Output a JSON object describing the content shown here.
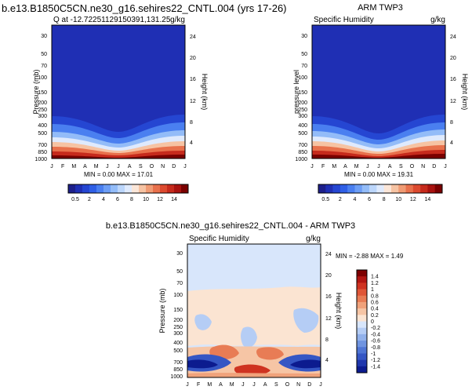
{
  "figure_title": "b.e13.B1850C5CN.ne30_g16.sehires22_CNTL.004 (yrs 17-26)",
  "colors": {
    "model_obs_scale": [
      "#1d1f8a",
      "#1f2fb4",
      "#2546d2",
      "#2f5fe6",
      "#4a7ff0",
      "#6d9ef5",
      "#93bcf8",
      "#bcd6fb",
      "#dfeafd",
      "#fbe6d8",
      "#f6c3a3",
      "#f09b74",
      "#e8714c",
      "#dc4a2f",
      "#c62a1c",
      "#a8120f",
      "#7a0000"
    ],
    "diff_scale": [
      "#0c1b8f",
      "#1f37ad",
      "#3556c4",
      "#4f75d4",
      "#6f94e0",
      "#91b1eb",
      "#b5cdf5",
      "#d8e6fb",
      "#fbe4d2",
      "#f6c5a5",
      "#f0a27b",
      "#e87c55",
      "#df5637",
      "#cf3321",
      "#b21612",
      "#7d0000"
    ]
  },
  "chart_data": [
    {
      "type": "heatmap",
      "panel": "model",
      "title_left": "Q at -12.72251129150391,131.25",
      "title_right": "g/kg",
      "xlabel": "",
      "ylabel": "Pressure (mb)",
      "ylabel_right": "Height (km)",
      "x_ticks": [
        "J",
        "F",
        "M",
        "A",
        "M",
        "J",
        "J",
        "A",
        "S",
        "O",
        "N",
        "D",
        "J"
      ],
      "y_ticks": [
        "30",
        "50",
        "70",
        "100",
        "150",
        "200",
        "250",
        "300",
        "400",
        "500",
        "700",
        "850",
        "1000"
      ],
      "y_ticks_right": [
        "24",
        "20",
        "16",
        "12",
        "8",
        "4"
      ],
      "min_max_text": "MIN =  0.00 MAX = 17.01",
      "min": 0.0,
      "max": 17.01,
      "colorbar_labels": [
        "0.5",
        "2",
        "4",
        "6",
        "8",
        "10",
        "12",
        "14"
      ]
    },
    {
      "type": "heatmap",
      "panel": "observation",
      "title_center": "ARM TWP3",
      "title_left": "Specific Humidity",
      "title_right": "g/kg",
      "xlabel": "",
      "ylabel": "pressure level",
      "ylabel_right": "Height (km)",
      "x_ticks": [
        "J",
        "F",
        "M",
        "A",
        "M",
        "J",
        "J",
        "A",
        "S",
        "O",
        "N",
        "D",
        "J"
      ],
      "y_ticks": [
        "30",
        "50",
        "70",
        "100",
        "150",
        "200",
        "250",
        "300",
        "400",
        "500",
        "700",
        "850",
        "1000"
      ],
      "y_ticks_right": [
        "24",
        "20",
        "16",
        "12",
        "8",
        "4"
      ],
      "min_max_text": "MIN =  0.00 MAX = 19.31",
      "min": 0.0,
      "max": 19.31,
      "colorbar_labels": [
        "0.5",
        "2",
        "4",
        "6",
        "8",
        "10",
        "12",
        "14"
      ]
    },
    {
      "type": "heatmap",
      "panel": "difference",
      "title_center": "b.e13.B1850C5CN.ne30_g16.sehires22_CNTL.004 - ARM TWP3",
      "title_left": "Specific Humidity",
      "title_right": "g/kg",
      "xlabel": "",
      "ylabel": "Pressure (mb)",
      "ylabel_right": "Height (km)",
      "x_ticks": [
        "J",
        "F",
        "M",
        "A",
        "M",
        "J",
        "J",
        "A",
        "S",
        "O",
        "N",
        "D",
        "J"
      ],
      "y_ticks": [
        "30",
        "50",
        "70",
        "100",
        "150",
        "200",
        "250",
        "300",
        "400",
        "500",
        "700",
        "850",
        "1000"
      ],
      "y_ticks_right": [
        "24",
        "20",
        "16",
        "12",
        "8",
        "4"
      ],
      "min_max_text": "MIN = -2.88 MAX =  1.49",
      "min": -2.88,
      "max": 1.49,
      "colorbar_labels": [
        "1.4",
        "1.2",
        "1",
        "0.8",
        "0.6",
        "0.4",
        "0.2",
        "0",
        "-0.2",
        "-0.4",
        "-0.6",
        "-0.8",
        "-1",
        "-1.2",
        "-1.4"
      ]
    }
  ]
}
